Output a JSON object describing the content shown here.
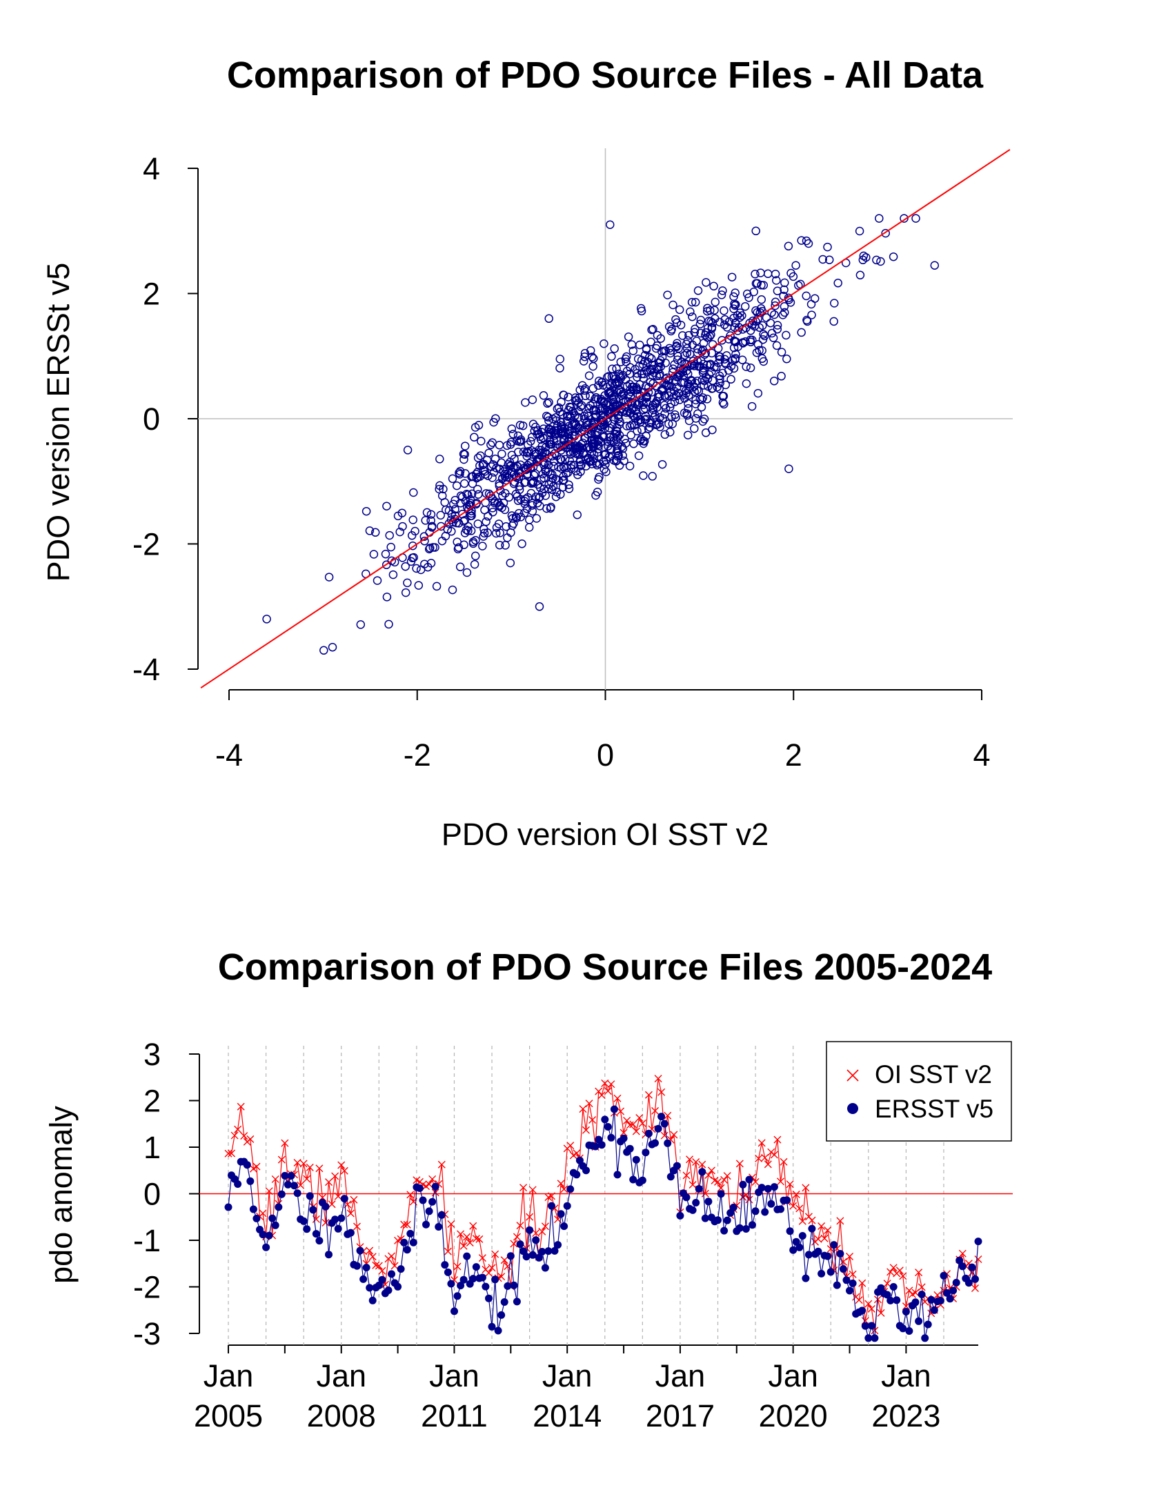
{
  "chart_data": [
    {
      "type": "scatter",
      "title": "Comparison of PDO Source Files - All Data",
      "xlabel": "PDO version OI SST v2",
      "ylabel": "PDO version ERSSt v5",
      "xlim": [
        -4,
        4
      ],
      "ylim": [
        -4,
        4
      ],
      "xticks": [
        "-4",
        "-2",
        "0",
        "2",
        "4"
      ],
      "yticks": [
        "-4",
        "-2",
        "0",
        "2",
        "4"
      ],
      "reference_lines": {
        "x": 0,
        "y": 0
      },
      "fit_line": {
        "slope": 1.0,
        "intercept": 0.0,
        "color": "#ff0000"
      },
      "marker": "open-circle",
      "point_color": "#00008b",
      "n_points_approx": 1300,
      "notable_points": [
        {
          "x": 0.05,
          "y": 3.1
        },
        {
          "x": 3.3,
          "y": 3.2
        },
        {
          "x": 3.5,
          "y": 2.45
        },
        {
          "x": 1.6,
          "y": 3.0
        },
        {
          "x": -3.6,
          "y": -3.2
        },
        {
          "x": -2.9,
          "y": -3.65
        },
        {
          "x": -0.7,
          "y": -3.0
        },
        {
          "x": 1.95,
          "y": -0.8
        },
        {
          "x": -0.6,
          "y": 1.6
        },
        {
          "x": -2.1,
          "y": -0.5
        }
      ]
    },
    {
      "type": "line",
      "title": "Comparison of PDO Source Files 2005-2024",
      "xlabel": "",
      "ylabel": "pdo anomaly",
      "ylim": [
        -3,
        3
      ],
      "yticks": [
        "-3",
        "-2",
        "-1",
        "0",
        "1",
        "2",
        "3"
      ],
      "xlim": [
        "2005-01",
        "2024-12"
      ],
      "xticks": [
        {
          "month": "Jan",
          "year": "2005"
        },
        {
          "month": "Jan",
          "year": "2008"
        },
        {
          "month": "Jan",
          "year": "2011"
        },
        {
          "month": "Jan",
          "year": "2014"
        },
        {
          "month": "Jan",
          "year": "2017"
        },
        {
          "month": "Jan",
          "year": "2020"
        },
        {
          "month": "Jan",
          "year": "2023"
        }
      ],
      "zero_line_color": "#ff0000",
      "legend_position": "top-right",
      "series": [
        {
          "name": "OI SST v2",
          "color": "#ff0000",
          "marker": "x",
          "annual_anchors": [
            {
              "date": "2005-01",
              "value": 0.4
            },
            {
              "date": "2005-07",
              "value": 1.5
            },
            {
              "date": "2006-01",
              "value": -0.8
            },
            {
              "date": "2006-07",
              "value": 0.8
            },
            {
              "date": "2007-01",
              "value": 0.2
            },
            {
              "date": "2007-07",
              "value": -0.1
            },
            {
              "date": "2008-01",
              "value": 0.4
            },
            {
              "date": "2008-07",
              "value": -1.2
            },
            {
              "date": "2009-01",
              "value": -1.5
            },
            {
              "date": "2009-07",
              "value": -1.3
            },
            {
              "date": "2010-01",
              "value": 0.0
            },
            {
              "date": "2010-07",
              "value": 0.3
            },
            {
              "date": "2011-01",
              "value": -1.3
            },
            {
              "date": "2011-07",
              "value": -1.0
            },
            {
              "date": "2012-01",
              "value": -1.5
            },
            {
              "date": "2012-07",
              "value": -1.6
            },
            {
              "date": "2013-01",
              "value": -0.5
            },
            {
              "date": "2013-07",
              "value": -0.6
            },
            {
              "date": "2014-01",
              "value": 0.3
            },
            {
              "date": "2014-07",
              "value": 1.5
            },
            {
              "date": "2015-01",
              "value": 2.3
            },
            {
              "date": "2015-07",
              "value": 1.7
            },
            {
              "date": "2016-01",
              "value": 1.5
            },
            {
              "date": "2016-07",
              "value": 2.2
            },
            {
              "date": "2017-01",
              "value": 0.4
            },
            {
              "date": "2017-07",
              "value": 0.6
            },
            {
              "date": "2018-01",
              "value": 0.2
            },
            {
              "date": "2018-07",
              "value": 0.1
            },
            {
              "date": "2019-01",
              "value": 0.3
            },
            {
              "date": "2019-07",
              "value": 0.9
            },
            {
              "date": "2020-01",
              "value": -0.4
            },
            {
              "date": "2020-07",
              "value": -0.5
            },
            {
              "date": "2021-01",
              "value": -0.9
            },
            {
              "date": "2021-07",
              "value": -1.4
            },
            {
              "date": "2022-01",
              "value": -2.5
            },
            {
              "date": "2022-07",
              "value": -1.8
            },
            {
              "date": "2023-01",
              "value": -2.4
            },
            {
              "date": "2023-07",
              "value": -2.3
            },
            {
              "date": "2024-01",
              "value": -2.4
            },
            {
              "date": "2024-07",
              "value": -1.6
            }
          ]
        },
        {
          "name": "ERSST v5",
          "color": "#00008b",
          "marker": "filled-circle",
          "annual_anchors": [
            {
              "date": "2005-01",
              "value": -0.2
            },
            {
              "date": "2005-07",
              "value": 0.9
            },
            {
              "date": "2006-01",
              "value": -1.5
            },
            {
              "date": "2006-07",
              "value": 0.2
            },
            {
              "date": "2007-01",
              "value": -0.3
            },
            {
              "date": "2007-07",
              "value": -0.7
            },
            {
              "date": "2008-01",
              "value": -0.1
            },
            {
              "date": "2008-07",
              "value": -1.7
            },
            {
              "date": "2009-01",
              "value": -1.9
            },
            {
              "date": "2009-07",
              "value": -1.7
            },
            {
              "date": "2010-01",
              "value": -0.6
            },
            {
              "date": "2010-07",
              "value": -0.1
            },
            {
              "date": "2011-01",
              "value": -2.0
            },
            {
              "date": "2011-07",
              "value": -1.7
            },
            {
              "date": "2012-01",
              "value": -2.4
            },
            {
              "date": "2012-07",
              "value": -2.1
            },
            {
              "date": "2013-01",
              "value": -1.1
            },
            {
              "date": "2013-07",
              "value": -1.3
            },
            {
              "date": "2014-01",
              "value": -0.3
            },
            {
              "date": "2014-07",
              "value": 0.9
            },
            {
              "date": "2015-01",
              "value": 1.6
            },
            {
              "date": "2015-07",
              "value": 1.0
            },
            {
              "date": "2016-01",
              "value": 0.6
            },
            {
              "date": "2016-07",
              "value": 1.5
            },
            {
              "date": "2017-01",
              "value": -0.3
            },
            {
              "date": "2017-07",
              "value": -0.1
            },
            {
              "date": "2018-01",
              "value": -0.5
            },
            {
              "date": "2018-07",
              "value": -0.6
            },
            {
              "date": "2019-01",
              "value": -0.3
            },
            {
              "date": "2019-07",
              "value": 0.4
            },
            {
              "date": "2020-01",
              "value": -1.1
            },
            {
              "date": "2020-07",
              "value": -1.1
            },
            {
              "date": "2021-01",
              "value": -1.5
            },
            {
              "date": "2021-07",
              "value": -1.9
            },
            {
              "date": "2022-01",
              "value": -2.9
            },
            {
              "date": "2022-07",
              "value": -2.3
            },
            {
              "date": "2023-01",
              "value": -2.7
            },
            {
              "date": "2023-07",
              "value": -2.6
            },
            {
              "date": "2024-01",
              "value": -2.2
            },
            {
              "date": "2024-07",
              "value": -1.5
            }
          ]
        }
      ]
    }
  ]
}
